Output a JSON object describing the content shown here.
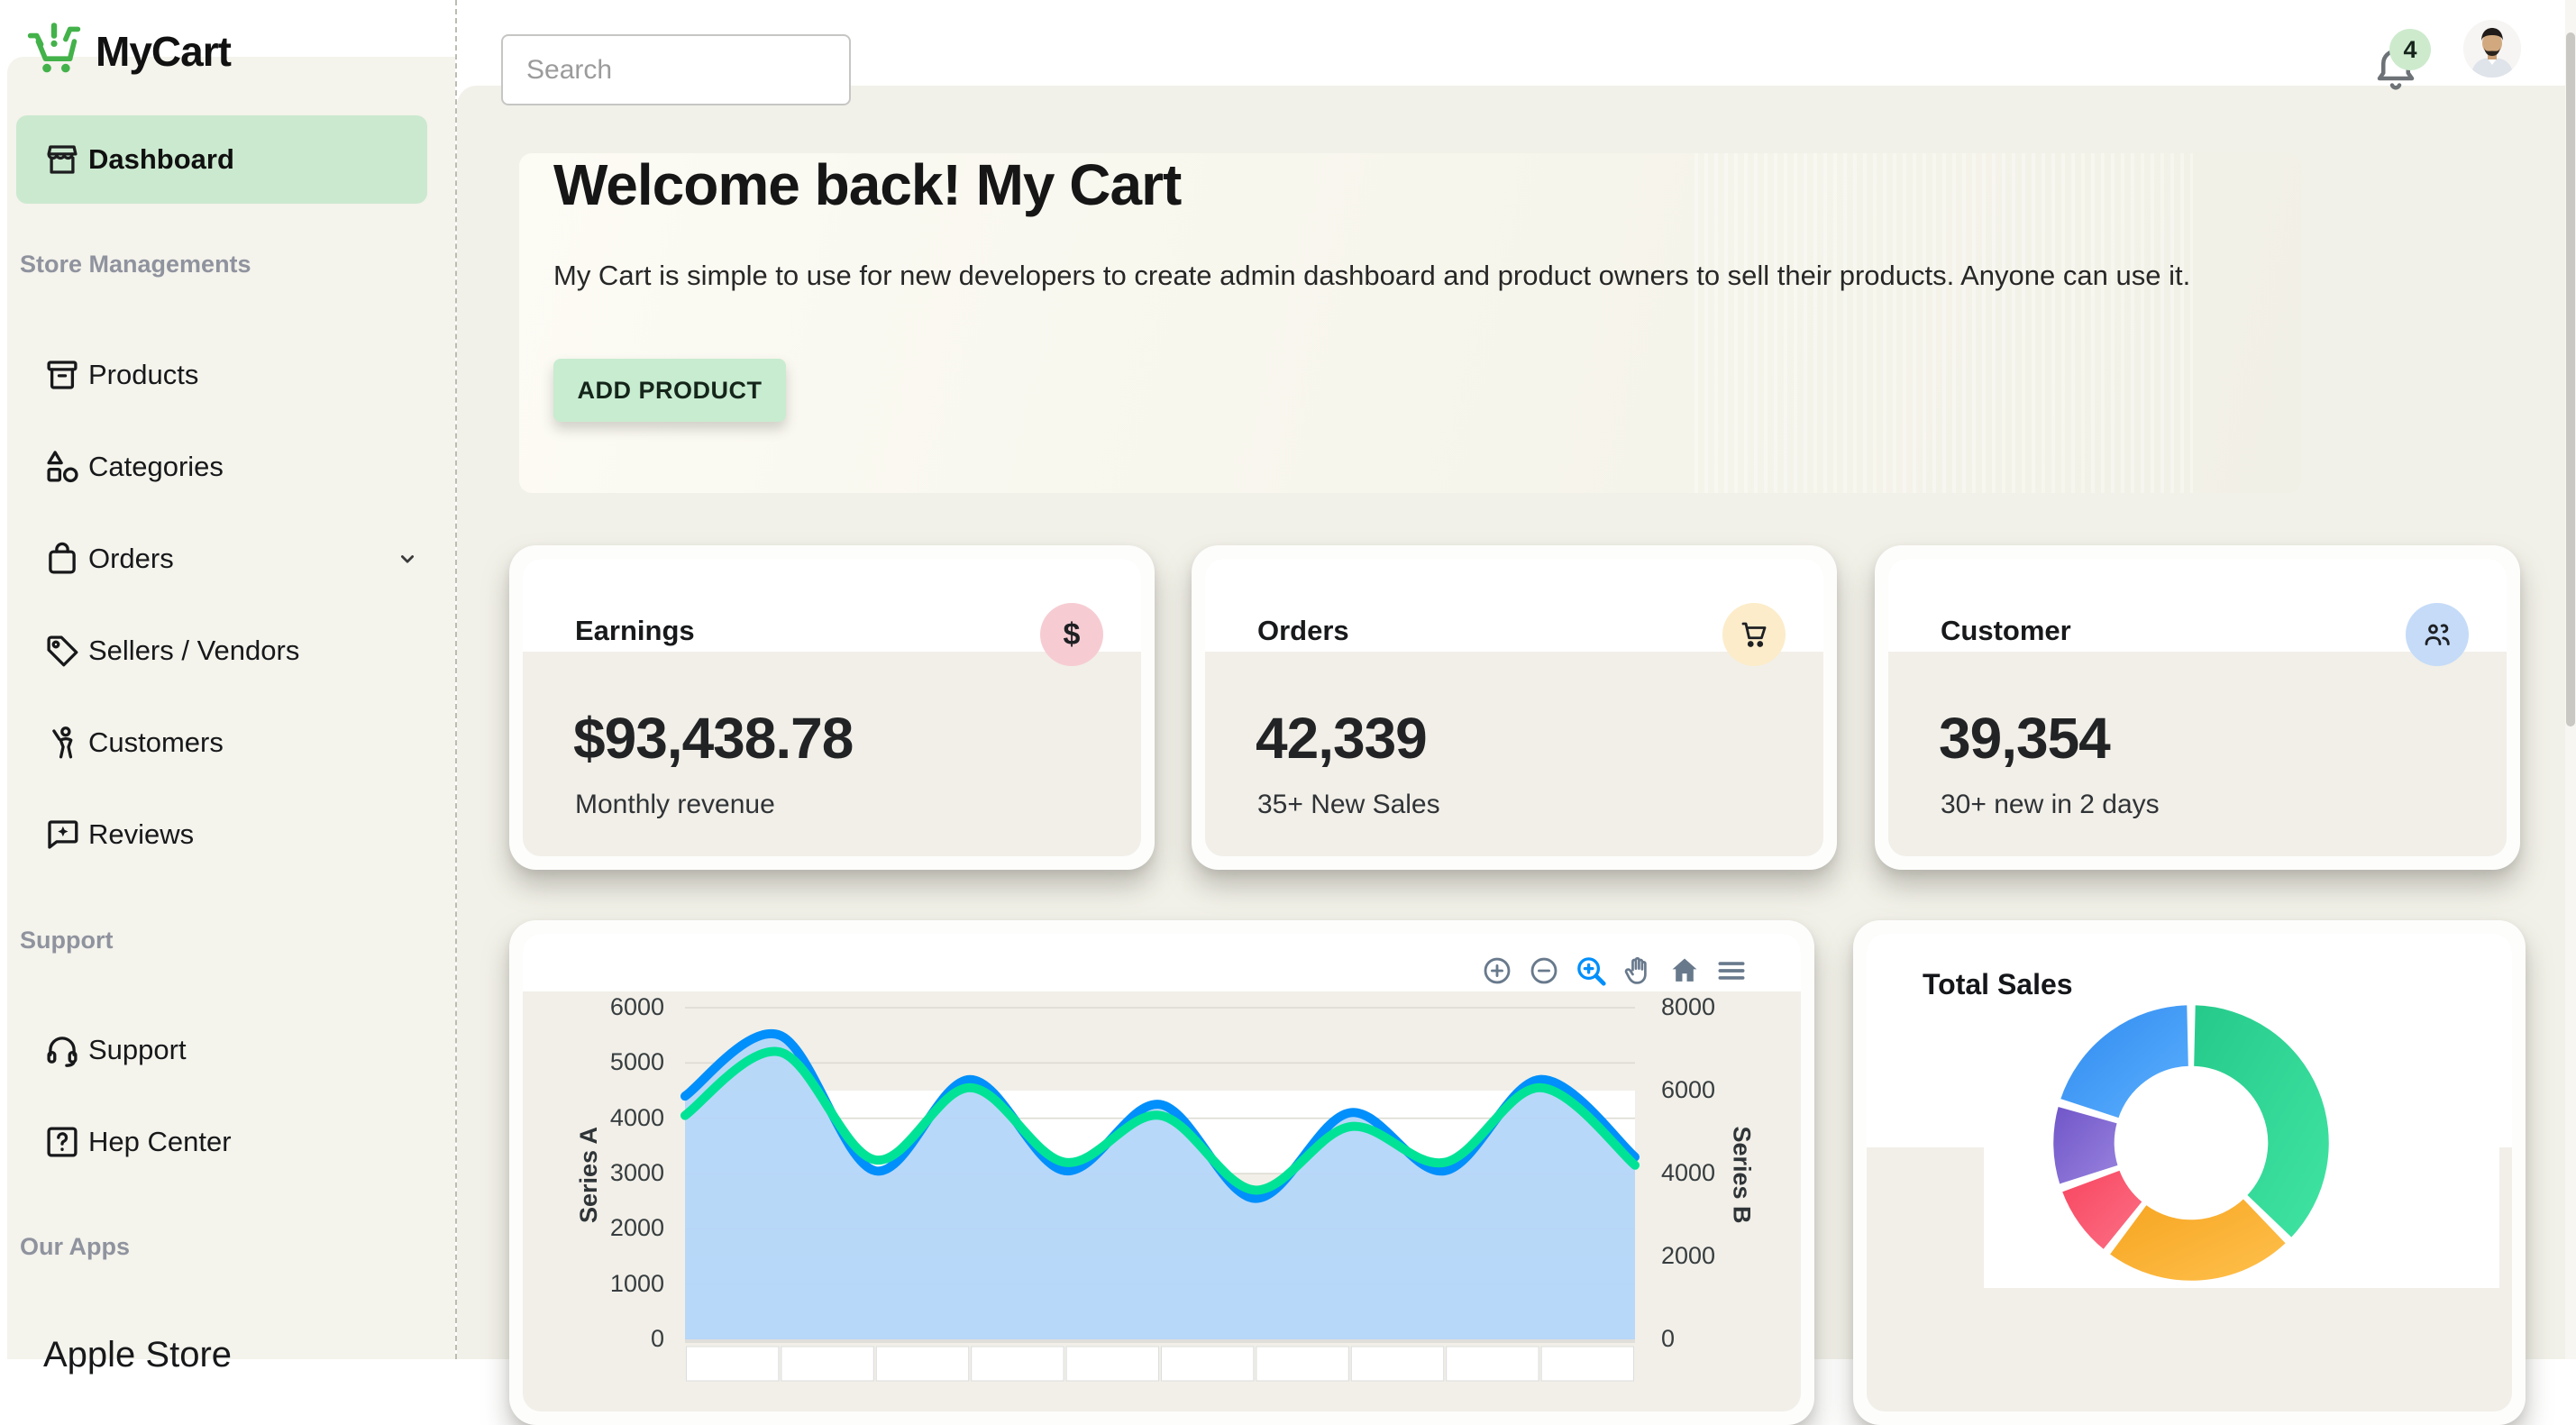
{
  "app": {
    "name": "MyCart"
  },
  "topbar": {
    "search_placeholder": "Search",
    "notification_count": "4"
  },
  "sidebar": {
    "logo": "MyCart",
    "active_item": {
      "label": "Dashboard",
      "icon": "storefront-icon"
    },
    "sections": [
      {
        "label": "Store Managements",
        "items": [
          {
            "label": "Products",
            "icon": "archive-box-icon"
          },
          {
            "label": "Categories",
            "icon": "shapes-icon"
          },
          {
            "label": "Orders",
            "icon": "shopping-bag-icon",
            "has_submenu": true
          },
          {
            "label": "Sellers / Vendors",
            "icon": "tag-icon"
          },
          {
            "label": "Customers",
            "icon": "person-wave-icon"
          },
          {
            "label": "Reviews",
            "icon": "chat-star-icon"
          }
        ]
      },
      {
        "label": "Support",
        "items": [
          {
            "label": "Support",
            "icon": "headset-icon"
          },
          {
            "label": "Hep Center",
            "icon": "help-box-icon"
          }
        ]
      },
      {
        "label": "Our Apps",
        "items": [
          {
            "label": "Apple Store",
            "icon": "none"
          }
        ]
      }
    ]
  },
  "banner": {
    "title": "Welcome back! My Cart",
    "subtitle": "My Cart is simple to use for new developers to create admin dashboard and product owners to sell their products. Anyone can use it.",
    "button": "ADD PRODUCT"
  },
  "stats": [
    {
      "title": "Earnings",
      "value": "$93,438.78",
      "caption": "Monthly revenue",
      "icon": "dollar-icon",
      "icon_bg": "#f6ccd2"
    },
    {
      "title": "Orders",
      "value": "42,339",
      "caption": "35+ New Sales",
      "icon": "cart-icon",
      "icon_bg": "#fcecca"
    },
    {
      "title": "Customer",
      "value": "39,354",
      "caption": "30+ new in 2 days",
      "icon": "people-icon",
      "icon_bg": "#c5dbf8"
    }
  ],
  "chart_data": [
    {
      "type": "area",
      "title": "",
      "x_points": 11,
      "series": [
        {
          "name": "Series A",
          "type": "area",
          "axis": "left",
          "color": "#008FFB",
          "fill": "#b4d6f9",
          "values": [
            4400,
            5500,
            3050,
            4700,
            3050,
            4250,
            2550,
            4100,
            3050,
            4700,
            3300
          ]
        },
        {
          "name": "Series B",
          "type": "line",
          "axis": "right",
          "color": "#00E396",
          "values": [
            5400,
            6930,
            4330,
            6070,
            4270,
            5400,
            3600,
            5130,
            4270,
            6070,
            4200
          ]
        }
      ],
      "left_axis": {
        "title": "Series A",
        "min": 0,
        "max": 6000,
        "ticks": [
          6000,
          5000,
          4000,
          3000,
          2000,
          1000,
          0
        ]
      },
      "right_axis": {
        "title": "Series B",
        "min": 0,
        "max": 8000,
        "ticks": [
          8000,
          6000,
          4000,
          2000,
          0
        ]
      },
      "grid": {
        "row_band_colors": [
          "transparent",
          "#ffffff"
        ],
        "gridline_color": "#dcdbd3"
      },
      "toolbar": [
        "zoom-in",
        "zoom-out",
        "selection-zoom",
        "pan",
        "home",
        "menu"
      ]
    },
    {
      "type": "donut",
      "title": "Total Sales",
      "slices": [
        {
          "value": 37.5,
          "color": "#25ca8b",
          "color2": "#41e4a2"
        },
        {
          "value": 23.0,
          "color": "#f6a41f",
          "color2": "#ffc14e"
        },
        {
          "value": 9.2,
          "color": "#f8455f",
          "color2": "#fb7187"
        },
        {
          "value": 10.0,
          "color": "#6f55c8",
          "color2": "#9983de"
        },
        {
          "value": 20.3,
          "color": "#2f8af0",
          "color2": "#5cb0fd"
        }
      ]
    }
  ]
}
